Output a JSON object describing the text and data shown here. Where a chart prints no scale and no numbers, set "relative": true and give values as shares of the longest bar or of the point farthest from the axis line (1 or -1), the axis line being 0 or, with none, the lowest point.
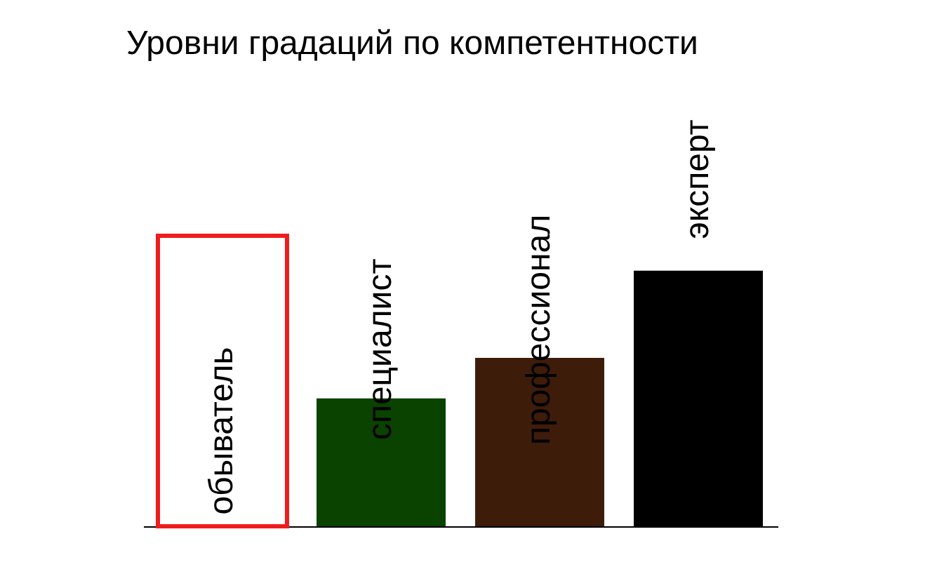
{
  "chart_data": {
    "type": "bar",
    "title": "Уровни градаций по компетентности",
    "categories": [
      "обыватель",
      "специалист",
      "профессионал",
      "эксперт"
    ],
    "values": [
      1,
      0.44,
      0.58,
      0.88
    ],
    "colors": [
      "#ee1c1c",
      "#0a4200",
      "#3e1c0a",
      "#000000"
    ],
    "relative": true
  }
}
